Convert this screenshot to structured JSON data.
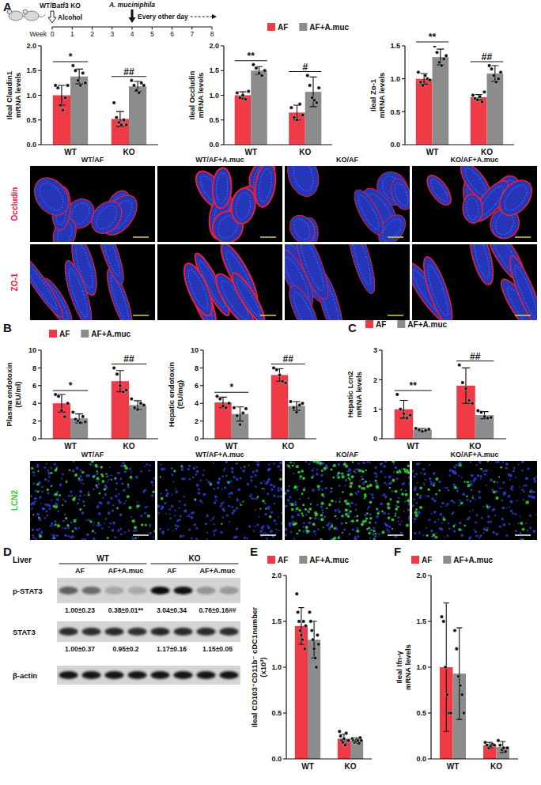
{
  "panel_labels": [
    "A",
    "B",
    "C",
    "D",
    "E",
    "F"
  ],
  "timeline": {
    "genotype": "WT/Batf3 KO",
    "alcohol": "Alcohol",
    "alcohol_week": 0,
    "bacterium": "A. muciniphila",
    "bacterium_week": 4,
    "schedule": "Every other day",
    "axis_label": "Week",
    "ticks": [
      0,
      1,
      2,
      3,
      4,
      5,
      6,
      7,
      8
    ]
  },
  "chart_data": [
    {
      "type": "bar",
      "y_label": [
        "Ileal Claudin1",
        "mRNA levels"
      ],
      "categories": [
        "WT",
        "KO"
      ],
      "series": [
        {
          "name": "AF",
          "color": "#f03a45",
          "values": [
            1.0,
            0.52
          ],
          "error": [
            0.2,
            0.15
          ],
          "points": [
            [
              1.2,
              1.15,
              0.8,
              0.7,
              0.95,
              1.2
            ],
            [
              0.85,
              0.55,
              0.45,
              0.4,
              0.5,
              0.4
            ]
          ]
        },
        {
          "name": "AF+A.muc",
          "color": "#8c8c8c",
          "values": [
            1.38,
            1.18
          ],
          "error": [
            0.15,
            0.1
          ],
          "points": [
            [
              1.6,
              1.5,
              1.3,
              1.2,
              1.45,
              1.25
            ],
            [
              1.3,
              1.2,
              1.1,
              1.05,
              1.25,
              1.2
            ]
          ]
        }
      ],
      "annotations": [
        "*",
        "##"
      ],
      "ylim": [
        0,
        2
      ],
      "yticks": [
        {
          "value": 0,
          "label": "0.0"
        },
        {
          "value": 0.5,
          "label": "0.5"
        },
        {
          "value": 1,
          "label": "1.0"
        },
        {
          "value": 1.5,
          "label": "1.5"
        },
        {
          "value": 2,
          "label": "2.0"
        }
      ]
    },
    {
      "type": "bar",
      "y_label": [
        "Ileal Occludin",
        "mRNA levels"
      ],
      "categories": [
        "WT",
        "KO"
      ],
      "series": [
        {
          "name": "AF",
          "color": "#f03a45",
          "values": [
            1.0,
            0.65
          ],
          "error": [
            0.07,
            0.15
          ],
          "points": [
            [
              1.05,
              0.95,
              1.0,
              0.92,
              1.08
            ],
            [
              0.75,
              0.55,
              0.5,
              0.82,
              0.6
            ]
          ]
        },
        {
          "name": "AF+A.muc",
          "color": "#8c8c8c",
          "values": [
            1.5,
            1.07
          ],
          "error": [
            0.08,
            0.3
          ],
          "points": [
            [
              1.62,
              1.55,
              1.45,
              1.4,
              1.5
            ],
            [
              1.4,
              1.2,
              0.95,
              0.9,
              0.85,
              1.15
            ]
          ]
        }
      ],
      "annotations": [
        "**",
        "#"
      ],
      "legend": "top",
      "ylim": [
        0,
        2
      ],
      "yticks": [
        {
          "value": 0,
          "label": "0.0"
        },
        {
          "value": 0.5,
          "label": "0.5"
        },
        {
          "value": 1,
          "label": "1.0"
        },
        {
          "value": 1.5,
          "label": "1.5"
        },
        {
          "value": 2,
          "label": "2.0"
        }
      ]
    },
    {
      "type": "bar",
      "y_label": [
        "Ileal Zo-1",
        "mRNA levels"
      ],
      "categories": [
        "WT",
        "KO"
      ],
      "series": [
        {
          "name": "AF",
          "color": "#f03a45",
          "values": [
            1.0,
            0.72
          ],
          "error": [
            0.08,
            0.04
          ],
          "points": [
            [
              1.1,
              0.95,
              0.9,
              1.05,
              1.0,
              0.98
            ],
            [
              0.75,
              0.7,
              0.68,
              0.73,
              0.65,
              0.8
            ]
          ]
        },
        {
          "name": "AF+A.muc",
          "color": "#8c8c8c",
          "values": [
            1.33,
            1.08
          ],
          "error": [
            0.12,
            0.12
          ],
          "points": [
            [
              1.5,
              1.4,
              1.25,
              1.2,
              1.3,
              1.35
            ],
            [
              1.2,
              1.15,
              1.05,
              0.95,
              1.0,
              1.1
            ]
          ]
        }
      ],
      "annotations": [
        "**",
        "##"
      ],
      "ylim": [
        0,
        1.5
      ],
      "yticks": [
        {
          "value": 0,
          "label": "0.0"
        },
        {
          "value": 0.5,
          "label": "0.5"
        },
        {
          "value": 1,
          "label": "1.0"
        },
        {
          "value": 1.5,
          "label": "1.5"
        }
      ]
    },
    {
      "type": "bar",
      "y_label": [
        "Plasma endotoxin",
        "(EU/ml)"
      ],
      "categories": [
        "WT",
        "KO"
      ],
      "series": [
        {
          "name": "AF",
          "color": "#f03a45",
          "values": [
            4.0,
            6.5
          ],
          "error": [
            1.0,
            1.2
          ],
          "points": [
            [
              5.0,
              4.8,
              3.2,
              2.5,
              4.0
            ],
            [
              8.0,
              7.3,
              6.0,
              5.3,
              5.5
            ]
          ]
        },
        {
          "name": "AF+A.muc",
          "color": "#8c8c8c",
          "values": [
            2.3,
            3.8
          ],
          "error": [
            0.5,
            0.5
          ],
          "points": [
            [
              3.0,
              2.2,
              2.0,
              1.8,
              2.5,
              1.9
            ],
            [
              4.5,
              3.5,
              3.3,
              4.0,
              3.8
            ]
          ]
        }
      ],
      "annotations": [
        "*",
        "##"
      ],
      "legend": "top",
      "ylim": [
        0,
        10
      ],
      "yticks": [
        0,
        2,
        4,
        6,
        8,
        10
      ]
    },
    {
      "type": "bar",
      "y_label": [
        "Hepatic endotoxin",
        "(EU/mg)"
      ],
      "categories": [
        "WT",
        "KO"
      ],
      "series": [
        {
          "name": "AF",
          "color": "#f03a45",
          "values": [
            4.1,
            7.2
          ],
          "error": [
            0.6,
            0.7
          ],
          "points": [
            [
              4.8,
              4.5,
              3.7,
              3.5,
              4.0
            ],
            [
              8.0,
              7.8,
              7.2,
              6.5,
              6.3
            ]
          ]
        },
        {
          "name": "AF+A.muc",
          "color": "#8c8c8c",
          "values": [
            2.8,
            3.7
          ],
          "error": [
            0.8,
            0.5
          ],
          "points": [
            [
              3.5,
              2.6,
              1.6,
              2.9,
              3.4
            ],
            [
              4.2,
              3.5,
              3.0,
              3.8,
              4.0
            ]
          ]
        }
      ],
      "annotations": [
        "*",
        "##"
      ],
      "ylim": [
        0,
        10
      ],
      "yticks": [
        0,
        2,
        4,
        6,
        8,
        10
      ]
    },
    {
      "type": "bar",
      "y_label": [
        "Hepatic Lcn2",
        "mRNA levels"
      ],
      "categories": [
        "WT",
        "KO"
      ],
      "series": [
        {
          "name": "AF",
          "color": "#f03a45",
          "values": [
            1.0,
            1.8
          ],
          "error": [
            0.3,
            0.6
          ],
          "points": [
            [
              1.5,
              1.0,
              0.85,
              0.7,
              0.8
            ],
            [
              2.5,
              1.9,
              1.7,
              1.3,
              1.2
            ]
          ]
        },
        {
          "name": "AF+A.muc",
          "color": "#8c8c8c",
          "values": [
            0.3,
            0.8
          ],
          "error": [
            0.05,
            0.12
          ],
          "points": [
            [
              0.35,
              0.3,
              0.25,
              0.28,
              0.32
            ],
            [
              0.95,
              0.9,
              0.75,
              0.7,
              0.72
            ]
          ]
        }
      ],
      "annotations": [
        "**",
        "##"
      ],
      "legend": "top",
      "ylim": [
        0,
        3
      ],
      "yticks": [
        0,
        1,
        2,
        3
      ]
    },
    {
      "type": "bar",
      "y_label": [
        "Ileal CD103⁺CD11b⁻ cDC1number",
        "(x10³)"
      ],
      "categories": [
        "WT",
        "KO"
      ],
      "series": [
        {
          "name": "AF",
          "color": "#f03a45",
          "values": [
            1.45,
            0.22
          ],
          "error": [
            0.2,
            0.05
          ],
          "points": [
            [
              1.8,
              1.6,
              1.5,
              1.4,
              1.35,
              1.3,
              1.5,
              1.2,
              1.45
            ],
            [
              0.3,
              0.25,
              0.2,
              0.18,
              0.22,
              0.15,
              0.28,
              0.2,
              0.2
            ]
          ]
        },
        {
          "name": "AF+A.muc",
          "color": "#8c8c8c",
          "values": [
            1.3,
            0.2
          ],
          "error": [
            0.2,
            0.03
          ],
          "points": [
            [
              1.6,
              1.5,
              1.4,
              1.3,
              1.2,
              1.1,
              1.0,
              1.35,
              1.25
            ],
            [
              0.22,
              0.2,
              0.18,
              0.19,
              0.21,
              0.2,
              0.17,
              0.23,
              0.2
            ]
          ]
        }
      ],
      "legend": "top",
      "ylim": [
        0,
        2
      ],
      "yticks": [
        {
          "value": 0,
          "label": "0.0"
        },
        {
          "value": 0.5,
          "label": "0.5"
        },
        {
          "value": 1,
          "label": "1.0"
        },
        {
          "value": 1.5,
          "label": "1.5"
        },
        {
          "value": 2,
          "label": "2.0"
        }
      ]
    },
    {
      "type": "bar",
      "y_label": [
        "Ileal Ifn-γ",
        "mRNA levels"
      ],
      "categories": [
        "WT",
        "KO"
      ],
      "series": [
        {
          "name": "AF",
          "color": "#f03a45",
          "values": [
            1.0,
            0.15
          ],
          "error": [
            0.7,
            0.03
          ],
          "points": [
            [
              1.55,
              1.5,
              1.0,
              0.7,
              0.5,
              0.5
            ],
            [
              0.18,
              0.15,
              0.12,
              0.14,
              0.16,
              0.15
            ]
          ]
        },
        {
          "name": "AF+A.muc",
          "color": "#8c8c8c",
          "values": [
            0.93,
            0.13
          ],
          "error": [
            0.5,
            0.06
          ],
          "points": [
            [
              1.4,
              1.2,
              0.9,
              0.8,
              0.7,
              0.5
            ],
            [
              0.2,
              0.15,
              0.1,
              0.12,
              0.08,
              0.12
            ]
          ]
        }
      ],
      "legend": "top",
      "ylim": [
        0,
        2
      ],
      "yticks": [
        {
          "value": 0,
          "label": "0.0"
        },
        {
          "value": 0.5,
          "label": "0.5"
        },
        {
          "value": 1,
          "label": "1.0"
        },
        {
          "value": 1.5,
          "label": "1.5"
        },
        {
          "value": 2,
          "label": "2.0"
        }
      ]
    }
  ],
  "image_panels": [
    {
      "columns": [
        "WT/AF",
        "WT/AF+A.muc",
        "KO/AF",
        "KO/AF+A.muc"
      ],
      "rows": [
        {
          "label": "Occludin",
          "color": "#e8203c"
        },
        {
          "label": "ZO-1",
          "color": "#e8203c"
        }
      ]
    },
    {
      "columns": [
        "WT/AF",
        "WT/AF+A.muc",
        "KO/AF",
        "KO/AF+A.muc"
      ],
      "rows": [
        {
          "label": "LCN2",
          "color": "#33cc33"
        }
      ]
    }
  ],
  "blot": {
    "tissue": "Liver",
    "groups": [
      "WT",
      "KO"
    ],
    "conditions": [
      "AF",
      "AF+A.muc",
      "AF",
      "AF+A.muc"
    ],
    "rows": [
      {
        "label": "p-STAT3",
        "quant": [
          "1.00±0.23",
          "0.38±0.01**",
          "3.04±0.34",
          "0.76±0.16##"
        ]
      },
      {
        "label": "STAT3",
        "quant": [
          "1.00±0.37",
          "0.95±0.2",
          "1.17±0.16",
          "1.15±0.05"
        ]
      },
      {
        "label": "β-actin"
      }
    ]
  }
}
